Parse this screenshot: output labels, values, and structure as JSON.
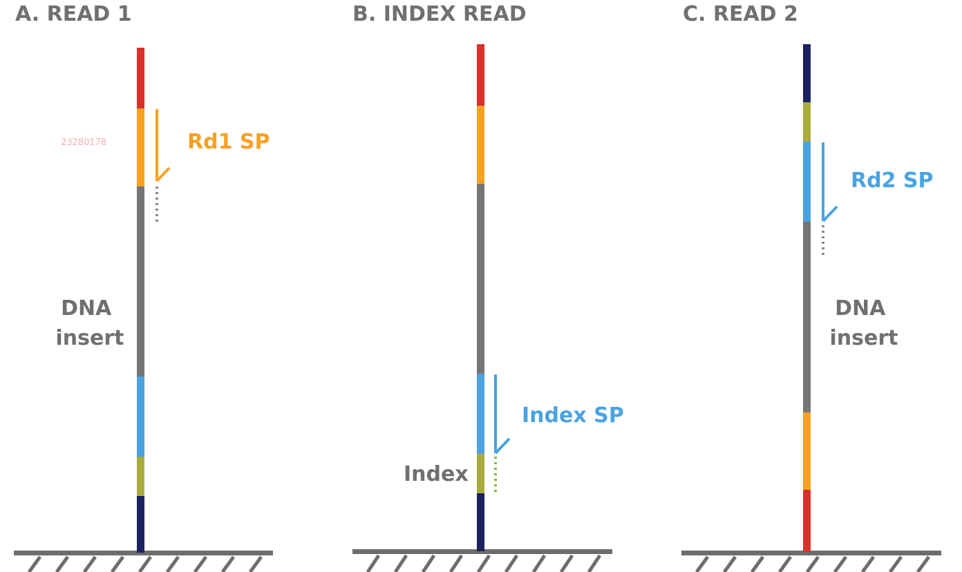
{
  "watermark": "23280178",
  "colors": {
    "red": "#d6312b",
    "orange": "#f8a123",
    "gray": "#767676",
    "blue": "#4aa3e0",
    "olive": "#a9ac3c",
    "navy": "#1c2260",
    "ground": "#6d6d6d",
    "dots_gray": "#8a8a8a",
    "dots_green": "#7bbf3b"
  },
  "panels": [
    {
      "title": "A. READ 1",
      "insert_label": [
        "DNA",
        "insert"
      ],
      "primer_label": "Rd1 SP",
      "primer_color": "orange",
      "index_label": "",
      "strand_colors": [
        "red",
        "orange",
        "gray",
        "blue",
        "olive",
        "navy"
      ]
    },
    {
      "title": "B. INDEX READ",
      "insert_label": [],
      "primer_label": "Index SP",
      "primer_color": "blue",
      "index_label": "Index",
      "strand_colors": [
        "red",
        "orange",
        "gray",
        "blue",
        "olive",
        "navy"
      ]
    },
    {
      "title": "C. READ 2",
      "insert_label": [
        "DNA",
        "insert"
      ],
      "primer_label": "Rd2 SP",
      "primer_color": "blue",
      "index_label": "",
      "strand_colors": [
        "navy",
        "olive",
        "blue",
        "gray",
        "orange",
        "red"
      ]
    }
  ]
}
